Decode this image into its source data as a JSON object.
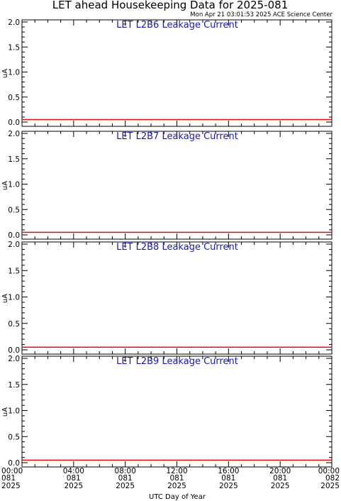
{
  "title": "LET ahead Housekeeping Data for 2025-081",
  "timestamp": "Mon Apr 21 03:01:53 2025 ACE Science Center",
  "colors": {
    "series": "#e01010",
    "panel_title": "#1a1aa8",
    "axes": "#000000"
  },
  "chart_data": [
    {
      "type": "line",
      "title": "LET L2B6 Leakage Current",
      "ylabel": "uA",
      "ylim": [
        0,
        2.0
      ],
      "yticks": [
        "0.0",
        "0.5",
        "1.0",
        "1.5",
        "2.0"
      ],
      "x": [
        0,
        24
      ],
      "series": [
        {
          "values": [
            0.05,
            0.05
          ]
        }
      ]
    },
    {
      "type": "line",
      "title": "LET L2B7 Leakage Current",
      "ylabel": "uA",
      "ylim": [
        0,
        2.0
      ],
      "yticks": [
        "0.0",
        "0.5",
        "1.0",
        "1.5",
        "2.0"
      ],
      "x": [
        0,
        24
      ],
      "series": [
        {
          "values": [
            0.05,
            0.05
          ]
        }
      ]
    },
    {
      "type": "line",
      "title": "LET L2B8 Leakage Current",
      "ylabel": "uA",
      "ylim": [
        0,
        2.0
      ],
      "yticks": [
        "0.0",
        "0.5",
        "1.0",
        "1.5",
        "2.0"
      ],
      "x": [
        0,
        24
      ],
      "series": [
        {
          "values": [
            0.05,
            0.05
          ]
        }
      ]
    },
    {
      "type": "line",
      "title": "LET L2B9 Leakage Current",
      "ylabel": "uA",
      "ylim": [
        0,
        2.0
      ],
      "yticks": [
        "0.0",
        "0.5",
        "1.0",
        "1.5",
        "2.0"
      ],
      "x": [
        0,
        24
      ],
      "series": [
        {
          "values": [
            0.05,
            0.05
          ]
        }
      ]
    }
  ],
  "x_axis": {
    "label": "UTC Day of Year",
    "range": [
      0,
      24
    ],
    "ticks": [
      {
        "value": 0,
        "time": "00:00",
        "doy": "081",
        "year": "2025"
      },
      {
        "value": 4,
        "time": "04:00",
        "doy": "081",
        "year": "2025"
      },
      {
        "value": 8,
        "time": "08:00",
        "doy": "081",
        "year": "2025"
      },
      {
        "value": 12,
        "time": "12:00",
        "doy": "081",
        "year": "2025"
      },
      {
        "value": 16,
        "time": "16:00",
        "doy": "081",
        "year": "2025"
      },
      {
        "value": 20,
        "time": "20:00",
        "doy": "081",
        "year": "2025"
      },
      {
        "value": 24,
        "time": "00:00",
        "doy": "082",
        "year": "2025"
      }
    ]
  }
}
